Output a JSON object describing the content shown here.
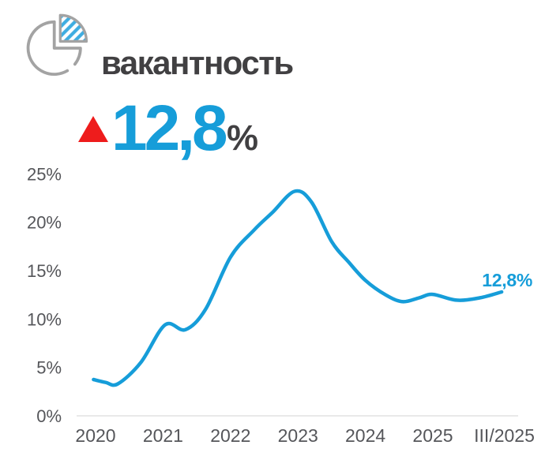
{
  "header": {
    "title": "вакантность",
    "icon": "pie-chart-icon"
  },
  "indicator": {
    "direction": "up",
    "arrow_icon": "red-up-triangle-icon",
    "value": "12,8",
    "unit": "%"
  },
  "colors": {
    "accent_blue": "#169dd9",
    "hatch_blue": "#3fade0",
    "alert_red": "#ee1c1c",
    "title_dark": "#414042",
    "axis_gray": "#55565a",
    "grid_gray": "#e9e9e9",
    "icon_gray": "#a3a3a3"
  },
  "chart_data": {
    "type": "line",
    "title": "вакантность",
    "xlabel": "",
    "ylabel": "",
    "ylim": [
      0,
      25
    ],
    "grid": "baseline-only",
    "legend": "none",
    "line_color": "#169dd9",
    "end_label": "12,8%",
    "y_ticks": [
      {
        "label": "0%",
        "value": 0
      },
      {
        "label": "5%",
        "value": 5
      },
      {
        "label": "10%",
        "value": 10
      },
      {
        "label": "15%",
        "value": 15
      },
      {
        "label": "20%",
        "value": 20
      },
      {
        "label": "25%",
        "value": 25
      }
    ],
    "x_ticks": [
      {
        "label": "2020",
        "t": 0
      },
      {
        "label": "2021",
        "t": 1
      },
      {
        "label": "2022",
        "t": 2
      },
      {
        "label": "2023",
        "t": 3
      },
      {
        "label": "2024",
        "t": 4
      },
      {
        "label": "2025",
        "t": 5
      },
      {
        "label": "III/2025",
        "t": 6.06
      }
    ],
    "points": [
      [
        -0.03,
        3.75
      ],
      [
        0.15,
        3.45
      ],
      [
        0.33,
        3.3
      ],
      [
        0.67,
        5.5
      ],
      [
        1.03,
        9.4
      ],
      [
        1.33,
        8.9
      ],
      [
        1.63,
        11.0
      ],
      [
        2.0,
        16.4
      ],
      [
        2.35,
        19.2
      ],
      [
        2.62,
        21.0
      ],
      [
        2.95,
        23.2
      ],
      [
        3.2,
        22.1
      ],
      [
        3.5,
        18.0
      ],
      [
        3.75,
        15.9
      ],
      [
        4.0,
        14.0
      ],
      [
        4.3,
        12.5
      ],
      [
        4.55,
        11.8
      ],
      [
        4.8,
        12.2
      ],
      [
        5.0,
        12.55
      ],
      [
        5.35,
        11.95
      ],
      [
        5.7,
        12.2
      ],
      [
        6.02,
        12.8
      ]
    ],
    "key_readings": {
      "2020": 3.7,
      "2021": 9.4,
      "2022": 16.4,
      "peak_2023": 23.2,
      "2024": 14.0,
      "2025": 12.6,
      "III/2025": 12.8
    }
  }
}
